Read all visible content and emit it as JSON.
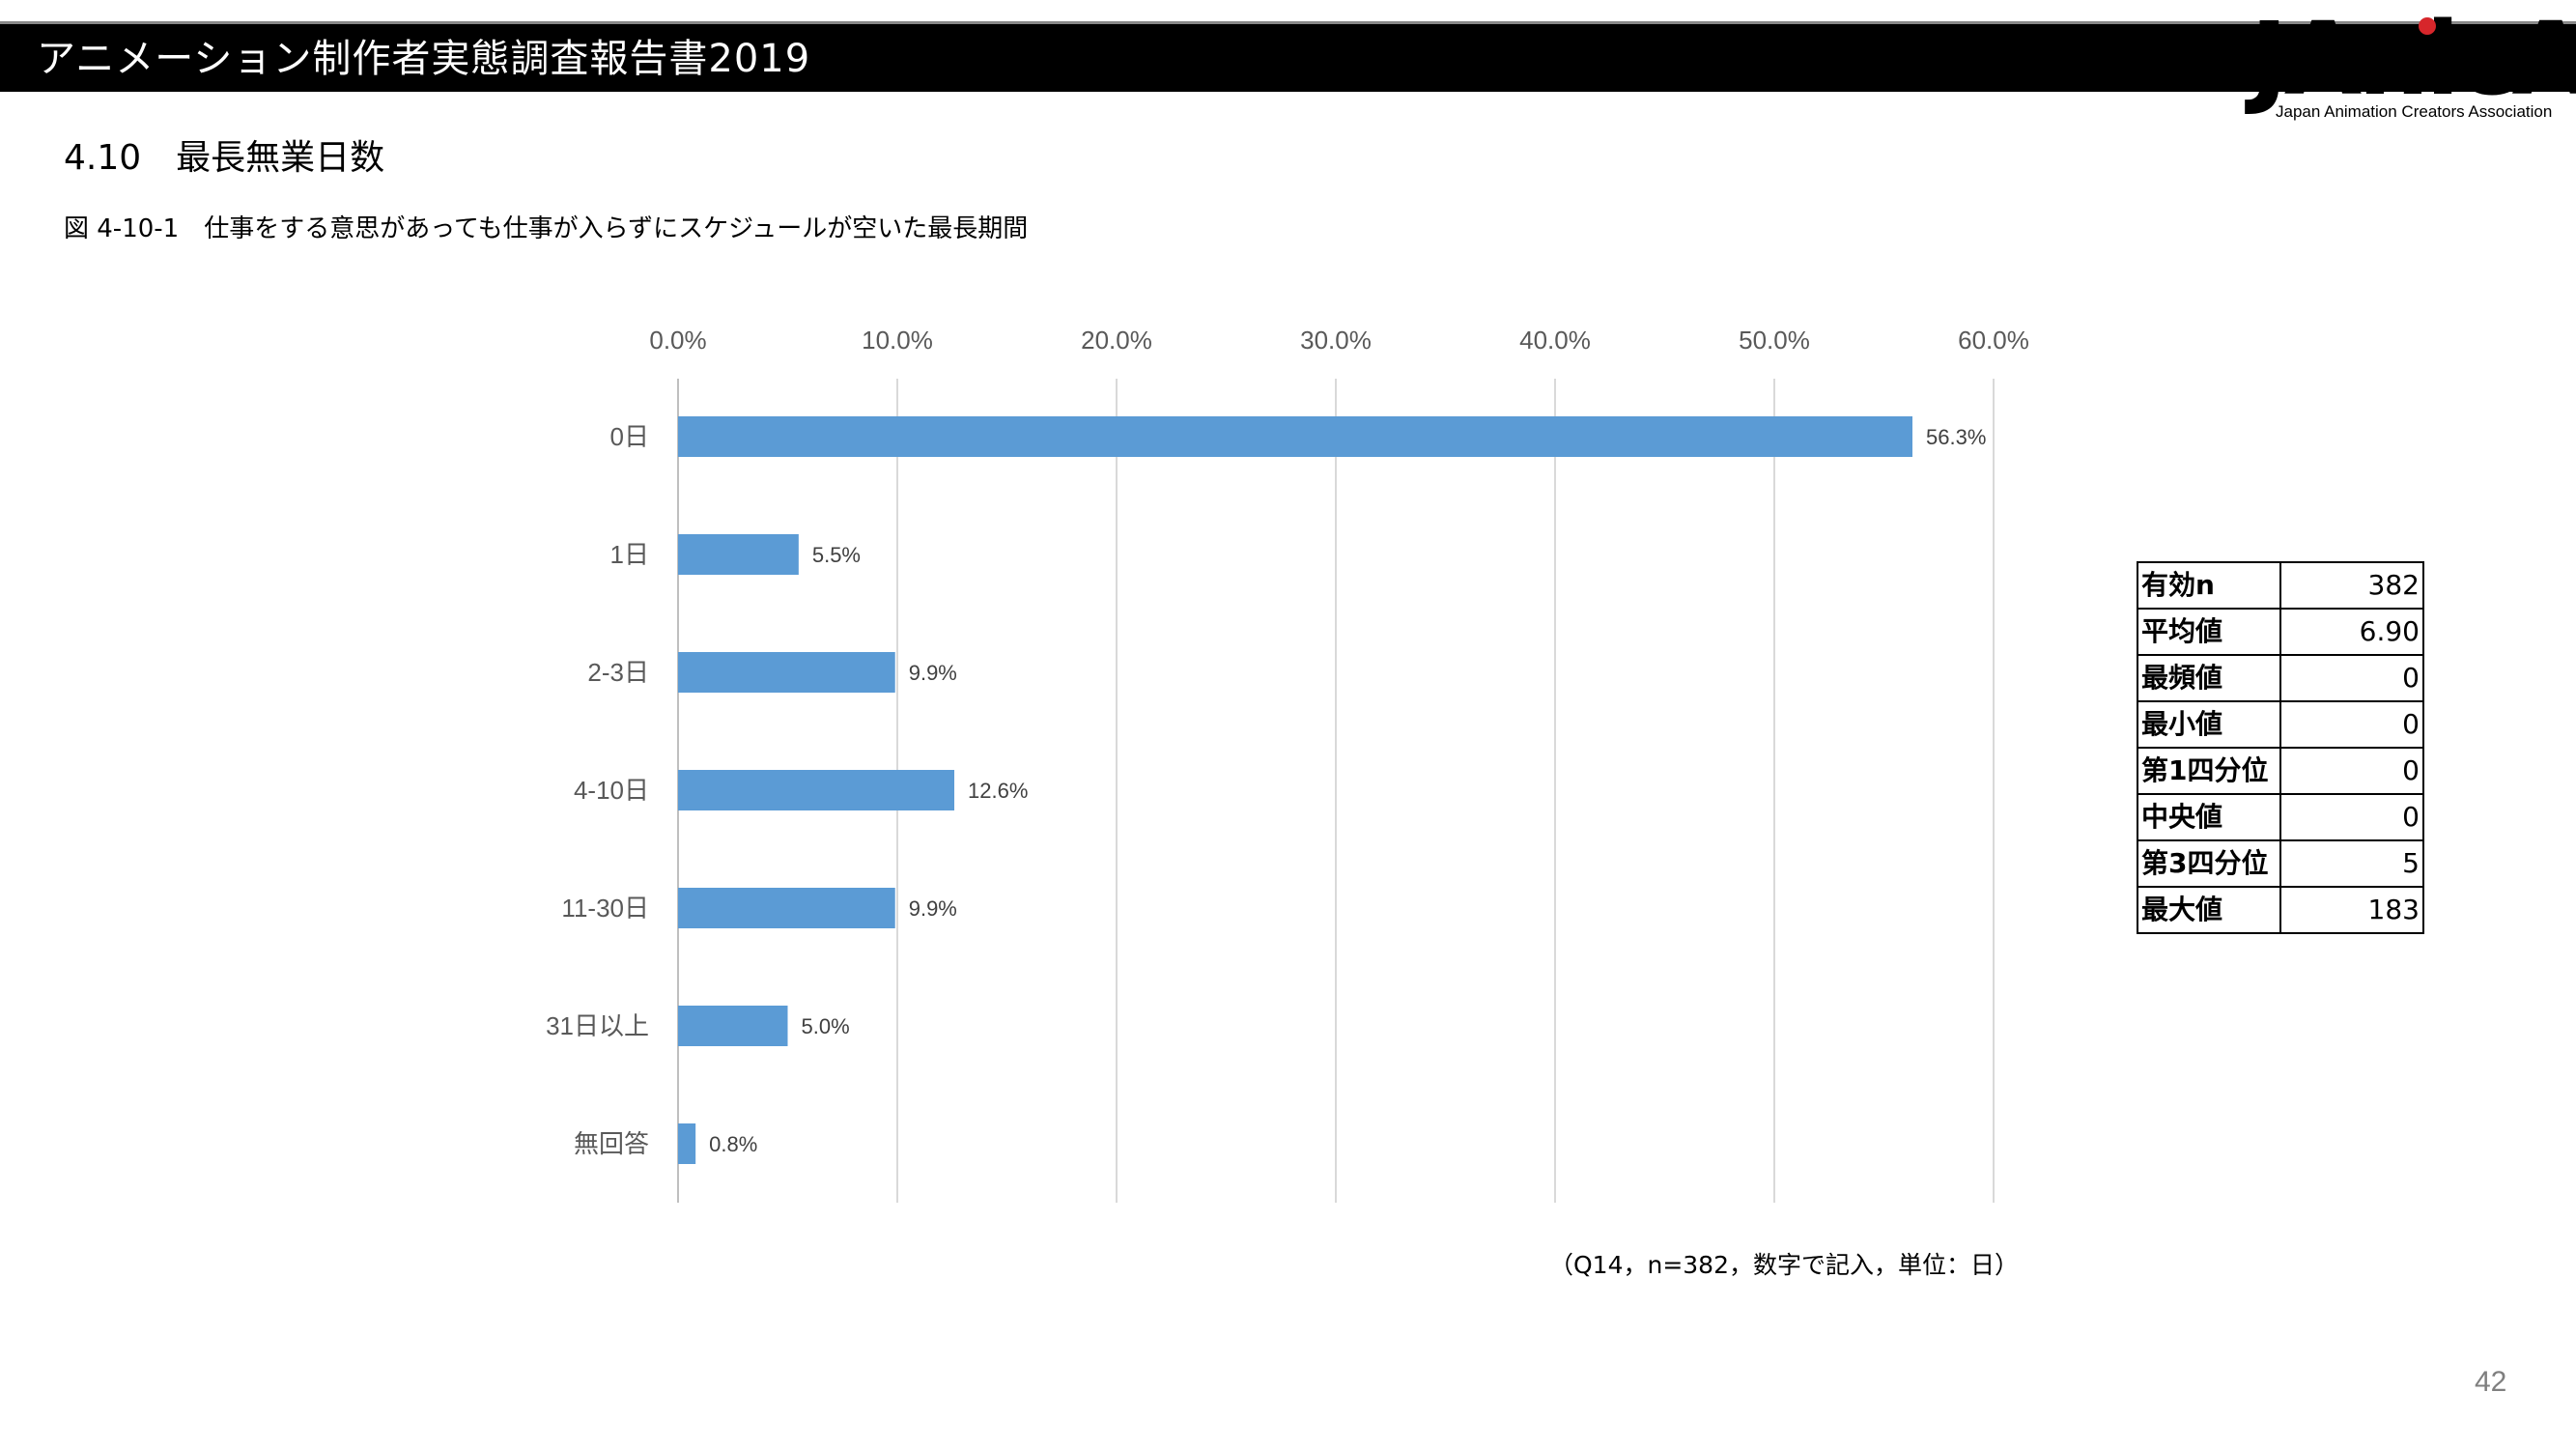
{
  "header": {
    "title": "アニメーション制作者実態調査報告書2019"
  },
  "logo": {
    "name": "JAnicA",
    "subtitle": "Japan Animation Creators Association"
  },
  "section": {
    "title": "4.10　最長無業日数"
  },
  "figure": {
    "caption": "図 4-10-1　仕事をする意思があっても仕事が入らずにスケジュールが空いた最長期間"
  },
  "chart_data": {
    "type": "bar",
    "orientation": "horizontal",
    "categories": [
      "0日",
      "1日",
      "2-3日",
      "4-10日",
      "11-30日",
      "31日以上",
      "無回答"
    ],
    "values": [
      56.3,
      5.5,
      9.9,
      12.6,
      9.9,
      5.0,
      0.8
    ],
    "data_labels": [
      "56.3%",
      "5.5%",
      "9.9%",
      "12.6%",
      "9.9%",
      "5.0%",
      "0.8%"
    ],
    "x_ticks": [
      "0.0%",
      "10.0%",
      "20.0%",
      "30.0%",
      "40.0%",
      "50.0%",
      "60.0%"
    ],
    "xlim": [
      0,
      60
    ],
    "x_axis_position": "top",
    "grid": true,
    "bar_color": "#5b9bd5",
    "title": "",
    "xlabel": "",
    "ylabel": ""
  },
  "stats_table": {
    "rows": [
      {
        "label": "有効n",
        "value": "382"
      },
      {
        "label": "平均値",
        "value": "6.90"
      },
      {
        "label": "最頻値",
        "value": "0"
      },
      {
        "label": "最小値",
        "value": "0"
      },
      {
        "label": "第1四分位",
        "value": "0"
      },
      {
        "label": "中央値",
        "value": "0"
      },
      {
        "label": "第3四分位",
        "value": "5"
      },
      {
        "label": "最大値",
        "value": "183"
      }
    ]
  },
  "footnote": "（Q14，n=382，数字で記入，単位：日）",
  "page_number": "42"
}
